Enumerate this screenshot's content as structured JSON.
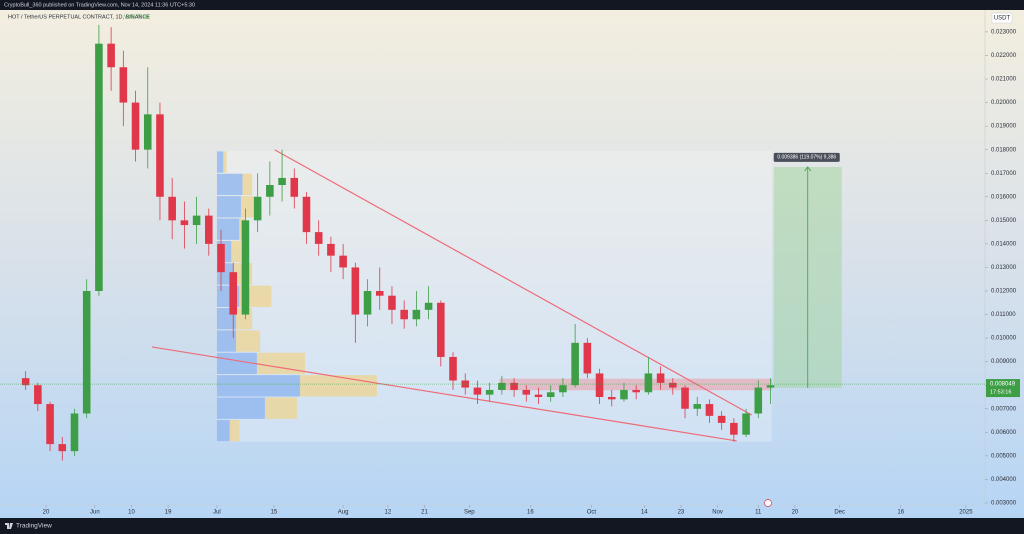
{
  "header": {
    "publisher": "CryptoBull_360 published on TradingView.com, Nov 14, 2024 11:36 UTC+5:30",
    "symbol": "HOT / TetherUS PERPETUAL CONTRACT, 1D, BINANCE",
    "volume": "Vol5.701B",
    "brand": "TradingView"
  },
  "chart_data": {
    "type": "candlestick",
    "currency": "USDT",
    "up_color": "#3e9e45",
    "down_color": "#e0384a",
    "xlim": [
      7.7,
      249.7
    ],
    "ylim": [
      0.00249,
      0.02393
    ],
    "xticks": [
      {
        "value": 19,
        "label": "20"
      },
      {
        "value": 31,
        "label": "Jun"
      },
      {
        "value": 40,
        "label": "10"
      },
      {
        "value": 49,
        "label": "19"
      },
      {
        "value": 61,
        "label": "Jul"
      },
      {
        "value": 75,
        "label": "15"
      },
      {
        "value": 92,
        "label": "Aug"
      },
      {
        "value": 103,
        "label": "12"
      },
      {
        "value": 112,
        "label": "21"
      },
      {
        "value": 123,
        "label": "Sep"
      },
      {
        "value": 138,
        "label": "16"
      },
      {
        "value": 153,
        "label": "Oct"
      },
      {
        "value": 166,
        "label": "14"
      },
      {
        "value": 175,
        "label": "23"
      },
      {
        "value": 184,
        "label": "Nov"
      },
      {
        "value": 194,
        "label": "11"
      },
      {
        "value": 203,
        "label": "20"
      },
      {
        "value": 214,
        "label": "Dec"
      },
      {
        "value": 229,
        "label": "16"
      },
      {
        "value": 245,
        "label": "2025"
      }
    ],
    "yticks": [
      {
        "value": 0.003,
        "label": "0.003000"
      },
      {
        "value": 0.004,
        "label": "0.004000"
      },
      {
        "value": 0.005,
        "label": "0.005000"
      },
      {
        "value": 0.006,
        "label": "0.006000"
      },
      {
        "value": 0.007,
        "label": "0.007000"
      },
      {
        "value": 0.008,
        "label": "0.008000"
      },
      {
        "value": 0.009,
        "label": "0.009000"
      },
      {
        "value": 0.01,
        "label": "0.010000"
      },
      {
        "value": 0.011,
        "label": "0.011000"
      },
      {
        "value": 0.012,
        "label": "0.012000"
      },
      {
        "value": 0.013,
        "label": "0.013000"
      },
      {
        "value": 0.014,
        "label": "0.014000"
      },
      {
        "value": 0.015,
        "label": "0.015000"
      },
      {
        "value": 0.016,
        "label": "0.016000"
      },
      {
        "value": 0.017,
        "label": "0.017000"
      },
      {
        "value": 0.018,
        "label": "0.018000"
      },
      {
        "value": 0.019,
        "label": "0.019000"
      },
      {
        "value": 0.02,
        "label": "0.020000"
      },
      {
        "value": 0.021,
        "label": "0.021000"
      },
      {
        "value": 0.022,
        "label": "0.022000"
      },
      {
        "value": 0.023,
        "label": "0.023000"
      }
    ],
    "x": [
      14,
      17,
      20,
      23,
      26,
      29,
      32,
      35,
      38,
      41,
      44,
      47,
      50,
      53,
      56,
      59,
      62,
      65,
      68,
      71,
      74,
      77,
      80,
      83,
      86,
      89,
      92,
      95,
      98,
      101,
      104,
      107,
      110,
      113,
      116,
      119,
      122,
      125,
      128,
      131,
      134,
      137,
      140,
      143,
      146,
      149,
      152,
      155,
      158,
      161,
      164,
      167,
      170,
      173,
      176,
      179,
      182,
      185,
      188,
      191,
      194,
      197
    ],
    "open": [
      0.0083,
      0.008,
      0.0072,
      0.0055,
      0.0052,
      0.0068,
      0.012,
      0.0225,
      0.0215,
      0.02,
      0.018,
      0.0195,
      0.016,
      0.015,
      0.0148,
      0.0152,
      0.014,
      0.0128,
      0.011,
      0.015,
      0.016,
      0.0165,
      0.0168,
      0.016,
      0.0145,
      0.014,
      0.0135,
      0.013,
      0.011,
      0.012,
      0.0118,
      0.0112,
      0.0108,
      0.0112,
      0.0115,
      0.0092,
      0.0082,
      0.0079,
      0.0076,
      0.0078,
      0.0081,
      0.0078,
      0.0076,
      0.0075,
      0.0077,
      0.008,
      0.0098,
      0.0085,
      0.0075,
      0.0074,
      0.0078,
      0.0077,
      0.0085,
      0.0081,
      0.0079,
      0.007,
      0.0072,
      0.0067,
      0.0064,
      0.0059,
      0.0068,
      0.0079
    ],
    "high": [
      0.0086,
      0.0081,
      0.0073,
      0.0058,
      0.007,
      0.0125,
      0.0233,
      0.0232,
      0.0222,
      0.0205,
      0.0215,
      0.02,
      0.0168,
      0.0158,
      0.016,
      0.0155,
      0.0146,
      0.0132,
      0.0155,
      0.017,
      0.0175,
      0.018,
      0.0172,
      0.0162,
      0.015,
      0.0143,
      0.014,
      0.0132,
      0.0125,
      0.013,
      0.0122,
      0.0116,
      0.012,
      0.0122,
      0.0116,
      0.0094,
      0.0085,
      0.0082,
      0.0081,
      0.0084,
      0.0083,
      0.008,
      0.0079,
      0.008,
      0.0083,
      0.0106,
      0.01,
      0.0087,
      0.0078,
      0.0081,
      0.008,
      0.0092,
      0.0088,
      0.0083,
      0.008,
      0.0075,
      0.0074,
      0.0069,
      0.0066,
      0.007,
      0.0082,
      0.0083
    ],
    "low": [
      0.0078,
      0.0069,
      0.0052,
      0.0048,
      0.005,
      0.0066,
      0.0118,
      0.0205,
      0.019,
      0.0175,
      0.0172,
      0.015,
      0.0142,
      0.0138,
      0.014,
      0.0135,
      0.012,
      0.01,
      0.0108,
      0.0145,
      0.0152,
      0.0158,
      0.0155,
      0.014,
      0.0135,
      0.0128,
      0.0125,
      0.0098,
      0.0105,
      0.0112,
      0.0106,
      0.0104,
      0.0105,
      0.0108,
      0.0088,
      0.0078,
      0.0076,
      0.0072,
      0.0073,
      0.0076,
      0.0075,
      0.0073,
      0.0072,
      0.0073,
      0.0075,
      0.0079,
      0.0083,
      0.0072,
      0.0071,
      0.0073,
      0.0074,
      0.0076,
      0.0078,
      0.0076,
      0.0066,
      0.0067,
      0.0064,
      0.0061,
      0.0056,
      0.0058,
      0.0066,
      0.0072
    ],
    "close": [
      0.008,
      0.0072,
      0.0055,
      0.0052,
      0.0068,
      0.012,
      0.0225,
      0.0215,
      0.02,
      0.018,
      0.0195,
      0.016,
      0.015,
      0.0148,
      0.0152,
      0.014,
      0.0128,
      0.011,
      0.015,
      0.016,
      0.0165,
      0.0168,
      0.016,
      0.0145,
      0.014,
      0.0135,
      0.013,
      0.011,
      0.012,
      0.0118,
      0.0112,
      0.0108,
      0.0112,
      0.0115,
      0.0092,
      0.0082,
      0.0079,
      0.0076,
      0.0078,
      0.0081,
      0.0078,
      0.0076,
      0.0075,
      0.0077,
      0.008,
      0.0098,
      0.0085,
      0.0075,
      0.0074,
      0.0078,
      0.0077,
      0.0085,
      0.0081,
      0.0079,
      0.007,
      0.0072,
      0.0067,
      0.0064,
      0.0059,
      0.0068,
      0.0079,
      0.008
    ],
    "last_price": {
      "value": 0.008049,
      "label": "0.008049"
    },
    "countdown": "17:53:16",
    "trend_lines": [
      {
        "x": [
          75.2,
          192.4
        ],
        "y": [
          0.01799,
          0.006737
        ],
        "color": "#ef6b78"
      },
      {
        "x": [
          45,
          188.7
        ],
        "y": [
          0.009624,
          0.005633
        ],
        "color": "#ef6b78"
      }
    ],
    "zone": {
      "x": [
        130.5,
        197.3
      ],
      "y": [
        0.007798,
        0.008265
      ],
      "color": "#f08a96"
    },
    "range_box": {
      "x": [
        61,
        197.3
      ],
      "y": [
        0.0056,
        0.01795
      ]
    },
    "volume_profile": {
      "x": 61,
      "scale": 1.6,
      "bins": [
        0.0056,
        0.00655,
        0.0075,
        0.00845,
        0.0094,
        0.01035,
        0.0113,
        0.01225,
        0.0132,
        0.01415,
        0.0151,
        0.01605,
        0.017,
        0.01795
      ],
      "up": [
        8,
        30,
        52,
        25,
        12,
        12,
        14,
        10,
        9,
        14,
        15,
        16,
        4
      ],
      "down": [
        6,
        20,
        48,
        30,
        15,
        10,
        20,
        12,
        6,
        4,
        8,
        6,
        2
      ],
      "up_color": "#8fb5ee",
      "down_color": "#ecd596"
    },
    "position": {
      "x": [
        197.8,
        214.5
      ],
      "entry": 0.007883,
      "target": 0.017268,
      "label": "0.009386 (119.07%) 9,386",
      "color": "#9fd39c"
    }
  }
}
